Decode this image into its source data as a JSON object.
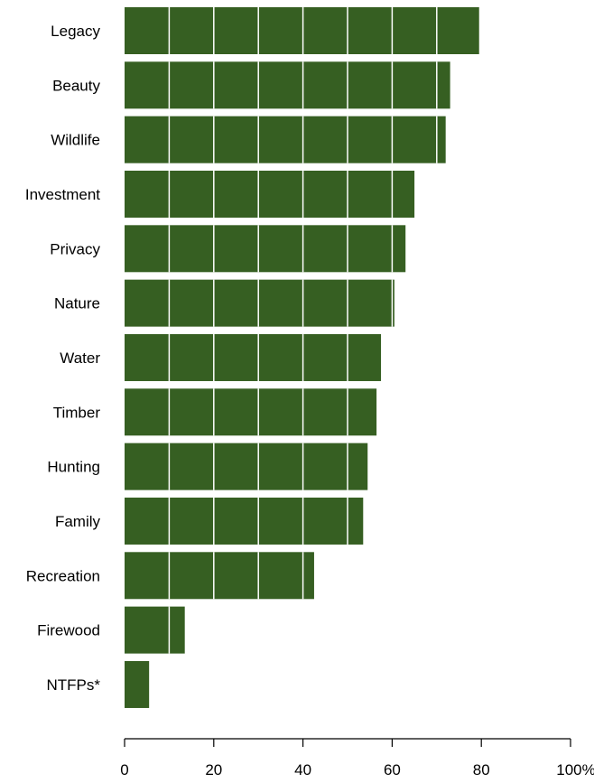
{
  "chart_data": {
    "type": "bar",
    "orientation": "horizontal",
    "categories": [
      "Legacy",
      "Beauty",
      "Wildlife",
      "Investment",
      "Privacy",
      "Nature",
      "Water",
      "Timber",
      "Hunting",
      "Family",
      "Recreation",
      "Firewood",
      "NTFPs*"
    ],
    "values": [
      79.5,
      73,
      72,
      65,
      63,
      60.5,
      57.5,
      56.5,
      54.5,
      53.5,
      42.5,
      13.5,
      5.5
    ],
    "xlim": [
      0,
      100
    ],
    "xticks": [
      "0",
      "20",
      "40",
      "60",
      "80",
      "100%"
    ],
    "gridlines_every": 10,
    "bar_color": "#365f22",
    "gridline_color": "#ffffff"
  }
}
